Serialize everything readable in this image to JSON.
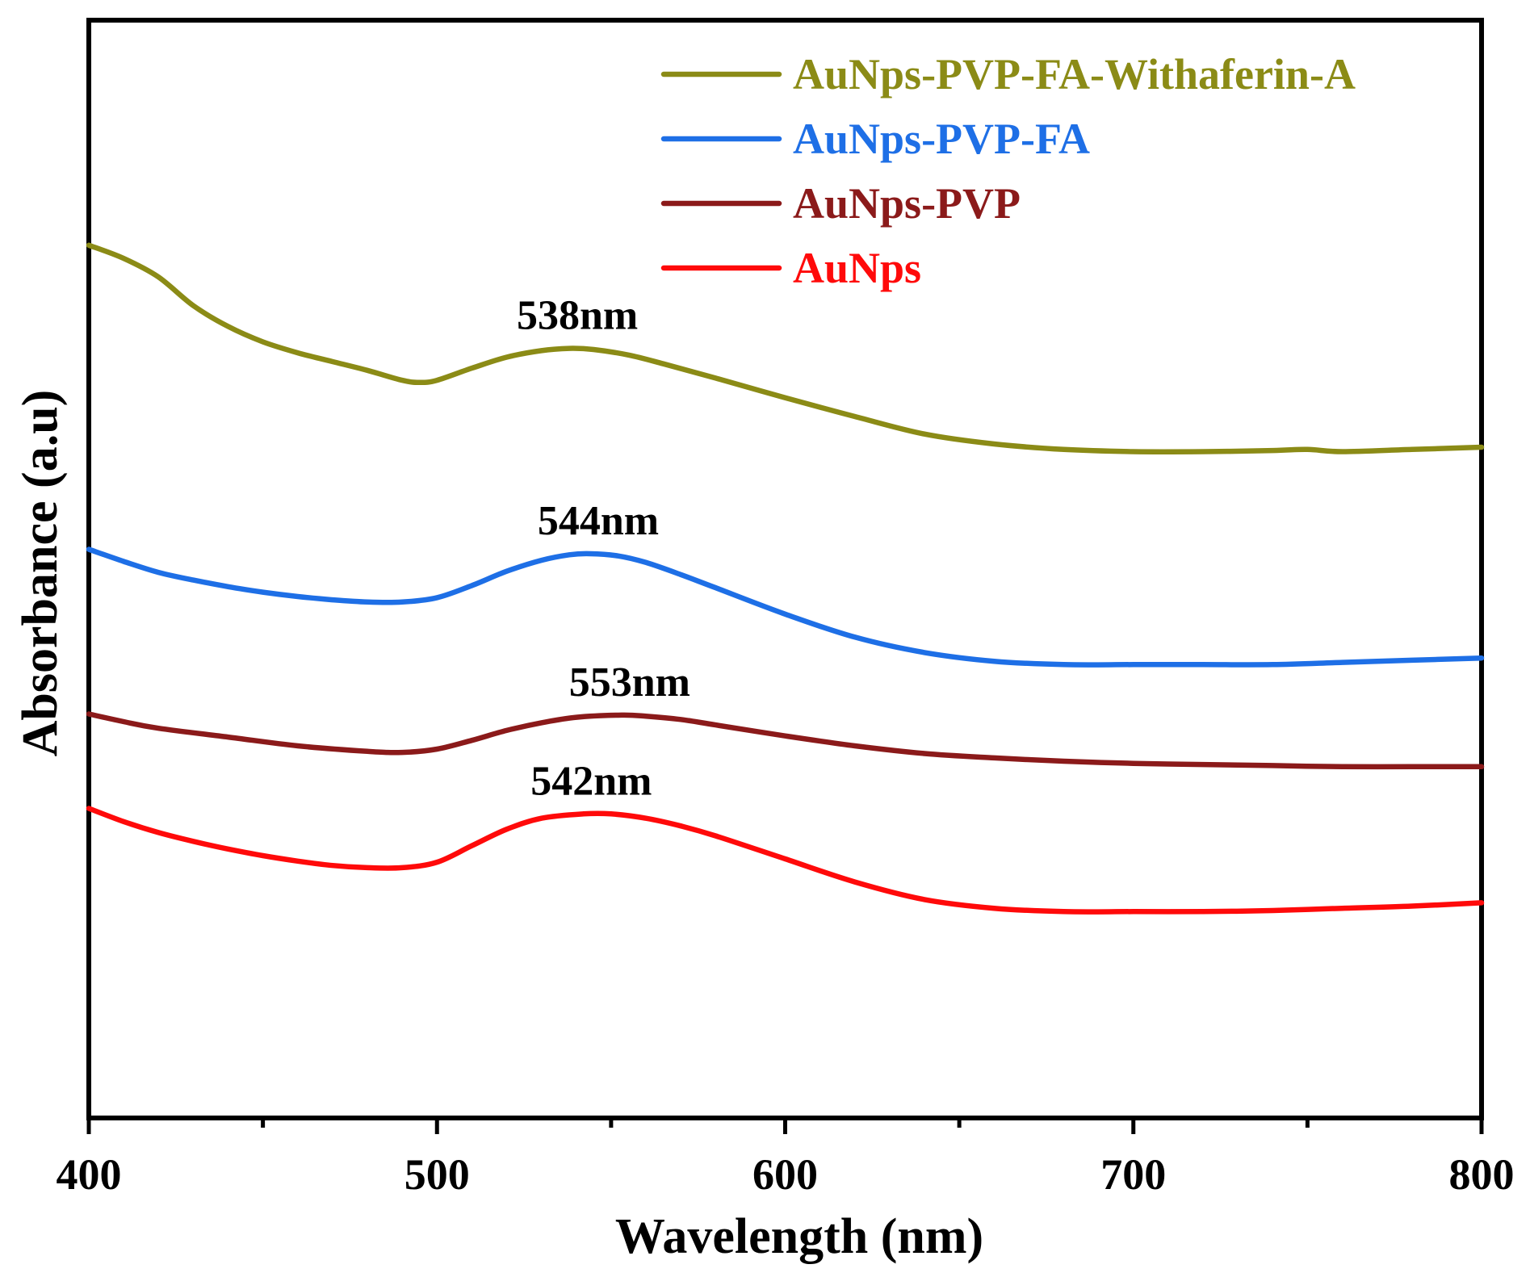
{
  "chart_data": {
    "type": "line",
    "title": "",
    "xlabel": "Wavelength (nm)",
    "ylabel": "Absorbance (a.u)",
    "xlim": [
      400,
      800
    ],
    "ylim": [
      0,
      1
    ],
    "x_ticks": [
      400,
      500,
      600,
      700,
      800
    ],
    "x_tick_labels": [
      "400",
      "500",
      "600",
      "700",
      "800"
    ],
    "x_minor_ticks": [
      450,
      550,
      650,
      750
    ],
    "y_ticks_shown": false,
    "grid": false,
    "legend_position": "top-right",
    "series": [
      {
        "name": "AuNps-PVP-FA-Withaferin-A",
        "color": "#8B8B16",
        "points": [
          [
            400,
            0.795
          ],
          [
            410,
            0.783
          ],
          [
            420,
            0.766
          ],
          [
            430,
            0.74
          ],
          [
            440,
            0.721
          ],
          [
            450,
            0.707
          ],
          [
            460,
            0.697
          ],
          [
            470,
            0.689
          ],
          [
            480,
            0.681
          ],
          [
            490,
            0.672
          ],
          [
            495,
            0.67
          ],
          [
            500,
            0.672
          ],
          [
            510,
            0.683
          ],
          [
            520,
            0.693
          ],
          [
            530,
            0.699
          ],
          [
            538,
            0.701
          ],
          [
            545,
            0.7
          ],
          [
            555,
            0.695
          ],
          [
            565,
            0.687
          ],
          [
            580,
            0.674
          ],
          [
            600,
            0.656
          ],
          [
            620,
            0.639
          ],
          [
            640,
            0.623
          ],
          [
            660,
            0.614
          ],
          [
            680,
            0.609
          ],
          [
            700,
            0.607
          ],
          [
            720,
            0.607
          ],
          [
            740,
            0.608
          ],
          [
            750,
            0.609
          ],
          [
            760,
            0.607
          ],
          [
            780,
            0.609
          ],
          [
            800,
            0.611
          ]
        ]
      },
      {
        "name": "AuNps-PVP-FA",
        "color": "#1E6FE6",
        "points": [
          [
            400,
            0.518
          ],
          [
            410,
            0.507
          ],
          [
            420,
            0.497
          ],
          [
            430,
            0.49
          ],
          [
            440,
            0.484
          ],
          [
            450,
            0.479
          ],
          [
            460,
            0.475
          ],
          [
            470,
            0.472
          ],
          [
            480,
            0.47
          ],
          [
            490,
            0.47
          ],
          [
            500,
            0.474
          ],
          [
            510,
            0.485
          ],
          [
            520,
            0.498
          ],
          [
            530,
            0.508
          ],
          [
            538,
            0.513
          ],
          [
            544,
            0.514
          ],
          [
            552,
            0.512
          ],
          [
            560,
            0.506
          ],
          [
            570,
            0.495
          ],
          [
            580,
            0.483
          ],
          [
            600,
            0.459
          ],
          [
            620,
            0.438
          ],
          [
            640,
            0.424
          ],
          [
            660,
            0.416
          ],
          [
            680,
            0.413
          ],
          [
            700,
            0.413
          ],
          [
            720,
            0.413
          ],
          [
            740,
            0.413
          ],
          [
            760,
            0.415
          ],
          [
            780,
            0.417
          ],
          [
            800,
            0.419
          ]
        ]
      },
      {
        "name": "AuNps-PVP",
        "color": "#8B1A1A",
        "points": [
          [
            400,
            0.368
          ],
          [
            410,
            0.361
          ],
          [
            420,
            0.355
          ],
          [
            440,
            0.347
          ],
          [
            460,
            0.339
          ],
          [
            480,
            0.334
          ],
          [
            490,
            0.333
          ],
          [
            500,
            0.336
          ],
          [
            510,
            0.344
          ],
          [
            520,
            0.353
          ],
          [
            530,
            0.36
          ],
          [
            540,
            0.365
          ],
          [
            553,
            0.367
          ],
          [
            560,
            0.366
          ],
          [
            570,
            0.363
          ],
          [
            580,
            0.358
          ],
          [
            600,
            0.348
          ],
          [
            620,
            0.339
          ],
          [
            640,
            0.332
          ],
          [
            660,
            0.328
          ],
          [
            680,
            0.325
          ],
          [
            700,
            0.323
          ],
          [
            720,
            0.322
          ],
          [
            740,
            0.321
          ],
          [
            760,
            0.32
          ],
          [
            780,
            0.32
          ],
          [
            800,
            0.32
          ]
        ]
      },
      {
        "name": "AuNps",
        "color": "#FF0A0A",
        "points": [
          [
            400,
            0.282
          ],
          [
            410,
            0.27
          ],
          [
            420,
            0.26
          ],
          [
            430,
            0.252
          ],
          [
            440,
            0.245
          ],
          [
            450,
            0.239
          ],
          [
            460,
            0.234
          ],
          [
            470,
            0.23
          ],
          [
            480,
            0.228
          ],
          [
            490,
            0.228
          ],
          [
            500,
            0.233
          ],
          [
            510,
            0.248
          ],
          [
            520,
            0.263
          ],
          [
            530,
            0.273
          ],
          [
            542,
            0.277
          ],
          [
            550,
            0.277
          ],
          [
            560,
            0.273
          ],
          [
            570,
            0.266
          ],
          [
            580,
            0.257
          ],
          [
            600,
            0.236
          ],
          [
            620,
            0.215
          ],
          [
            640,
            0.199
          ],
          [
            660,
            0.191
          ],
          [
            680,
            0.188
          ],
          [
            700,
            0.188
          ],
          [
            720,
            0.188
          ],
          [
            740,
            0.189
          ],
          [
            760,
            0.191
          ],
          [
            780,
            0.193
          ],
          [
            800,
            0.196
          ]
        ]
      }
    ],
    "annotations": [
      {
        "text": "538nm",
        "x": 538,
        "y": 0.701,
        "series": "AuNps-PVP-FA-Withaferin-A"
      },
      {
        "text": "544nm",
        "x": 544,
        "y": 0.514,
        "series": "AuNps-PVP-FA"
      },
      {
        "text": "553nm",
        "x": 553,
        "y": 0.367,
        "series": "AuNps-PVP"
      },
      {
        "text": "542nm",
        "x": 542,
        "y": 0.277,
        "series": "AuNps"
      }
    ]
  }
}
